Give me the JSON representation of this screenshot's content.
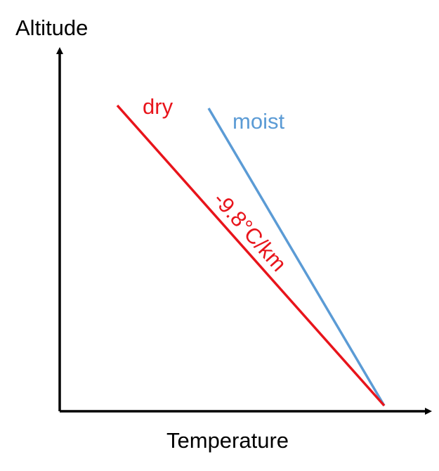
{
  "diagram": {
    "y_axis_label": "Altitude",
    "x_axis_label": "Temperature",
    "lines": [
      {
        "name": "dry",
        "label": "dry",
        "color": "#e8141b"
      },
      {
        "name": "moist",
        "label": "moist",
        "color": "#5b9bd5"
      }
    ],
    "lapse_rate_label": "-9.8°C/km",
    "axis_color": "#000000",
    "text_color": "#000000"
  }
}
